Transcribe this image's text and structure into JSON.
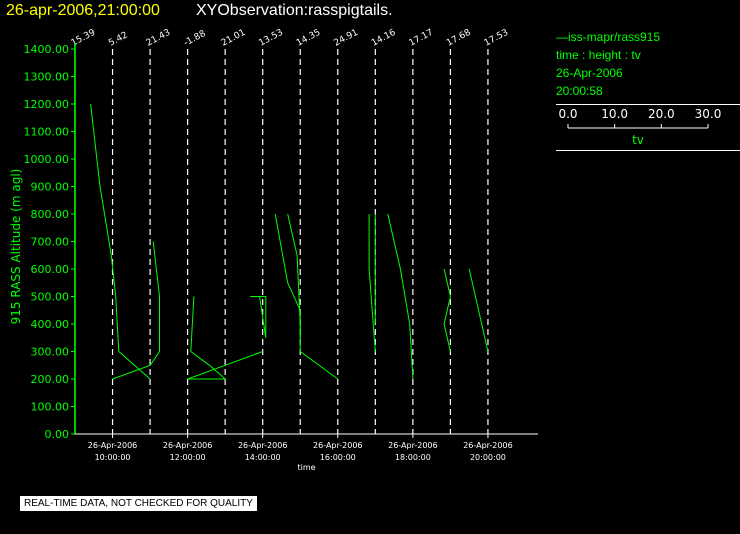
{
  "header": {
    "date_time": "26-apr-2006,21:00:00",
    "observation": "XYObservation:rasspigtails."
  },
  "legend": {
    "series_label": "—iss-mapr/rass915",
    "variables": "time : height : tv",
    "date": "26-Apr-2006",
    "time": "20:00:58",
    "scale_ticks": [
      "0.0",
      "10.0",
      "20.0",
      "30.0"
    ],
    "scale_label": "tv"
  },
  "footer": {
    "quality_notice": "REAL-TIME DATA, NOT CHECKED FOR QUALITY"
  },
  "colors": {
    "trace": "#00ff00",
    "axis": "#ffffff",
    "title_date": "#ffff00",
    "background": "#000000"
  },
  "chart_data": {
    "type": "line",
    "title": "",
    "xlabel": "time",
    "ylabel": "915 RASS Altitude (m agl)",
    "x_range": [
      "2006-04-26 09:00",
      "2006-04-26 21:20"
    ],
    "ylim": [
      0,
      1400
    ],
    "y_ticks": [
      0,
      100,
      200,
      300,
      400,
      500,
      600,
      700,
      800,
      900,
      1000,
      1100,
      1200,
      1300,
      1400
    ],
    "y_tick_labels": [
      "0.00",
      "100.00",
      "200.00",
      "300.00",
      "400.00",
      "500.00",
      "600.00",
      "700.00",
      "800.00",
      "900.00",
      "1000.00",
      "1100.00",
      "1200.00",
      "1300.00",
      "1400.00"
    ],
    "x_tick_times": [
      "2006-04-26 10:00",
      "2006-04-26 12:00",
      "2006-04-26 14:00",
      "2006-04-26 16:00",
      "2006-04-26 18:00",
      "2006-04-26 20:00"
    ],
    "x_tick_labels": [
      {
        "date": "26-Apr-2006",
        "time": "10:00:00"
      },
      {
        "date": "26-Apr-2006",
        "time": "12:00:00"
      },
      {
        "date": "26-Apr-2006",
        "time": "14:00:00"
      },
      {
        "date": "26-Apr-2006",
        "time": "16:00:00"
      },
      {
        "date": "26-Apr-2006",
        "time": "18:00:00"
      },
      {
        "date": "26-Apr-2006",
        "time": "20:00:00"
      }
    ],
    "profiles": [
      {
        "time": "2006-04-26 09:00",
        "label": "15.39"
      },
      {
        "time": "2006-04-26 10:00",
        "label": "5.42"
      },
      {
        "time": "2006-04-26 11:00",
        "label": "21.43"
      },
      {
        "time": "2006-04-26 12:00",
        "label": "-1.88"
      },
      {
        "time": "2006-04-26 13:00",
        "label": "21.01"
      },
      {
        "time": "2006-04-26 14:00",
        "label": "13.53"
      },
      {
        "time": "2006-04-26 15:00",
        "label": "14.35"
      },
      {
        "time": "2006-04-26 16:00",
        "label": "24.91"
      },
      {
        "time": "2006-04-26 17:00",
        "label": "14.16"
      },
      {
        "time": "2006-04-26 18:00",
        "label": "17.17"
      },
      {
        "time": "2006-04-26 19:00",
        "label": "17.68"
      },
      {
        "time": "2006-04-26 20:00",
        "label": "17.53"
      }
    ],
    "traces": [
      {
        "points": [
          [
            "2006-04-26 09:25",
            1200
          ],
          [
            "2006-04-26 09:40",
            900
          ],
          [
            "2006-04-26 09:58",
            650
          ],
          [
            "2006-04-26 10:05",
            500
          ],
          [
            "2006-04-26 10:10",
            300
          ],
          [
            "2006-04-26 11:00",
            200
          ]
        ]
      },
      {
        "points": [
          [
            "2006-04-26 10:00",
            200
          ],
          [
            "2006-04-26 11:00",
            250
          ],
          [
            "2006-04-26 11:15",
            300
          ],
          [
            "2006-04-26 11:15",
            500
          ],
          [
            "2006-04-26 11:05",
            700
          ]
        ]
      },
      {
        "points": [
          [
            "2006-04-26 12:10",
            500
          ],
          [
            "2006-04-26 12:05",
            300
          ],
          [
            "2006-04-26 12:35",
            250
          ],
          [
            "2006-04-26 13:00",
            200
          ],
          [
            "2006-04-26 12:00",
            200
          ],
          [
            "2006-04-26 13:00",
            250
          ],
          [
            "2006-04-26 14:00",
            300
          ]
        ]
      },
      {
        "points": [
          [
            "2006-04-26 13:55",
            500
          ],
          [
            "2006-04-26 14:05",
            350
          ],
          [
            "2006-04-26 14:05",
            500
          ],
          [
            "2006-04-26 13:40",
            500
          ]
        ]
      },
      {
        "points": [
          [
            "2006-04-26 14:20",
            800
          ],
          [
            "2006-04-26 14:40",
            550
          ],
          [
            "2006-04-26 15:00",
            450
          ],
          [
            "2006-04-26 15:00",
            350
          ]
        ]
      },
      {
        "points": [
          [
            "2006-04-26 14:40",
            800
          ],
          [
            "2006-04-26 14:55",
            650
          ],
          [
            "2006-04-26 15:00",
            400
          ],
          [
            "2006-04-26 15:00",
            300
          ],
          [
            "2006-04-26 16:00",
            200
          ]
        ]
      },
      {
        "points": [
          [
            "2006-04-26 16:50",
            800
          ],
          [
            "2006-04-26 16:50",
            600
          ],
          [
            "2006-04-26 17:00",
            300
          ]
        ]
      },
      {
        "points": [
          [
            "2006-04-26 17:00",
            800
          ],
          [
            "2006-04-26 17:00",
            600
          ],
          [
            "2006-04-26 17:00",
            400
          ]
        ]
      },
      {
        "points": [
          [
            "2006-04-26 17:20",
            800
          ],
          [
            "2006-04-26 17:40",
            600
          ],
          [
            "2006-04-26 17:55",
            400
          ],
          [
            "2006-04-26 18:00",
            200
          ]
        ]
      },
      {
        "points": [
          [
            "2006-04-26 18:50",
            600
          ],
          [
            "2006-04-26 19:00",
            500
          ],
          [
            "2006-04-26 18:50",
            400
          ],
          [
            "2006-04-26 19:00",
            300
          ]
        ]
      },
      {
        "points": [
          [
            "2006-04-26 19:30",
            600
          ],
          [
            "2006-04-26 19:45",
            450
          ],
          [
            "2006-04-26 20:00",
            300
          ]
        ]
      }
    ]
  }
}
